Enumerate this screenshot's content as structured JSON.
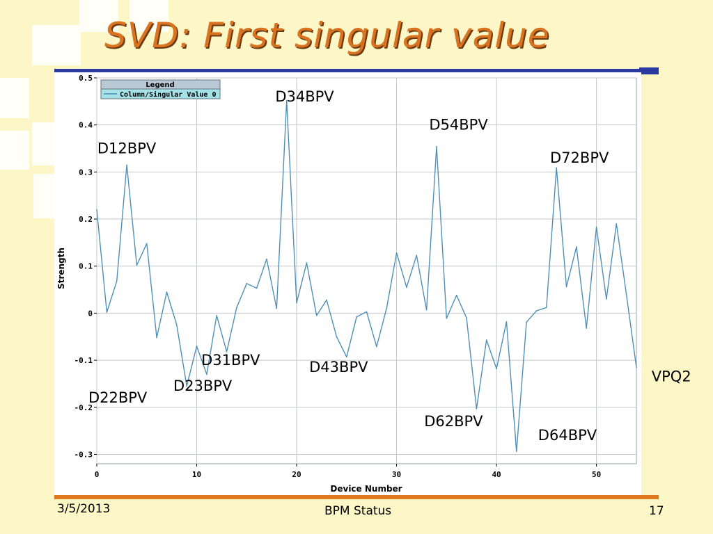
{
  "slide": {
    "title": "SVD: First singular value",
    "date": "3/5/2013",
    "footer_center": "BPM Status",
    "page_number": "17"
  },
  "colors": {
    "background": "#fdf7c8",
    "title": "#d9731f",
    "rule_top": "#2a3aa0",
    "rule_bottom": "#e07a1f",
    "series": "#4f8fb5",
    "legend_header": "#b9c9d6",
    "legend_entry": "#a6e3e9"
  },
  "chart_data": {
    "type": "line",
    "title": "",
    "xlabel": "Device Number",
    "ylabel": "Strength",
    "xlim": [
      0,
      54
    ],
    "ylim": [
      -0.32,
      0.5
    ],
    "xticks": [
      0,
      10,
      20,
      30,
      40,
      50
    ],
    "yticks": [
      0.5,
      0.4,
      0.3,
      0.2,
      0.1,
      0,
      -0.1,
      -0.2,
      -0.3
    ],
    "ytick_labels": [
      "0.5",
      "0.4",
      "0.3",
      "0.2",
      "0.1",
      "0",
      "-0.1",
      "-0.2",
      "-0.3"
    ],
    "grid": true,
    "legend": {
      "title": "Legend",
      "position": "top-left",
      "entries": [
        "Column/Singular Value 0"
      ]
    },
    "series": [
      {
        "name": "Column/Singular Value 0",
        "x": [
          0,
          1,
          2,
          3,
          4,
          5,
          6,
          7,
          8,
          9,
          10,
          11,
          12,
          13,
          14,
          15,
          16,
          17,
          18,
          19,
          20,
          21,
          22,
          23,
          24,
          25,
          26,
          27,
          28,
          29,
          30,
          31,
          32,
          33,
          34,
          35,
          36,
          37,
          38,
          39,
          40,
          41,
          42,
          43,
          44,
          45,
          46,
          47,
          48,
          49,
          50,
          51,
          52,
          53,
          54
        ],
        "y": [
          0.22,
          0.002,
          0.068,
          0.315,
          0.102,
          0.148,
          -0.052,
          0.045,
          -0.025,
          -0.155,
          -0.07,
          -0.13,
          -0.005,
          -0.082,
          0.012,
          0.063,
          0.053,
          0.115,
          0.01,
          0.452,
          0.022,
          0.107,
          -0.005,
          0.028,
          -0.05,
          -0.093,
          -0.008,
          0.003,
          -0.071,
          0.01,
          0.128,
          0.055,
          0.123,
          0.007,
          0.354,
          -0.011,
          0.038,
          -0.01,
          -0.203,
          -0.057,
          -0.118,
          -0.018,
          -0.294,
          -0.019,
          0.005,
          0.012,
          0.309,
          0.056,
          0.141,
          -0.032,
          0.183,
          0.03,
          0.19,
          0.04,
          -0.115
        ]
      }
    ],
    "annotations": [
      {
        "text": "D12BPV",
        "x": 3,
        "y": 0.34
      },
      {
        "text": "D22BPV",
        "x": 2.1,
        "y": -0.19
      },
      {
        "text": "D23BPV",
        "x": 10.6,
        "y": -0.165
      },
      {
        "text": "D31BPV",
        "x": 13.4,
        "y": -0.11
      },
      {
        "text": "D34BPV",
        "x": 20.8,
        "y": 0.45
      },
      {
        "text": "D43BPV",
        "x": 24.2,
        "y": -0.125
      },
      {
        "text": "D54BPV",
        "x": 36.2,
        "y": 0.39
      },
      {
        "text": "D62BPV",
        "x": 35.7,
        "y": -0.24
      },
      {
        "text": "D64BPV",
        "x": 47.1,
        "y": -0.27
      },
      {
        "text": "D72BPV",
        "x": 48.3,
        "y": 0.32
      },
      {
        "text": "VPQ2",
        "x": 57.5,
        "y": -0.145
      }
    ]
  }
}
